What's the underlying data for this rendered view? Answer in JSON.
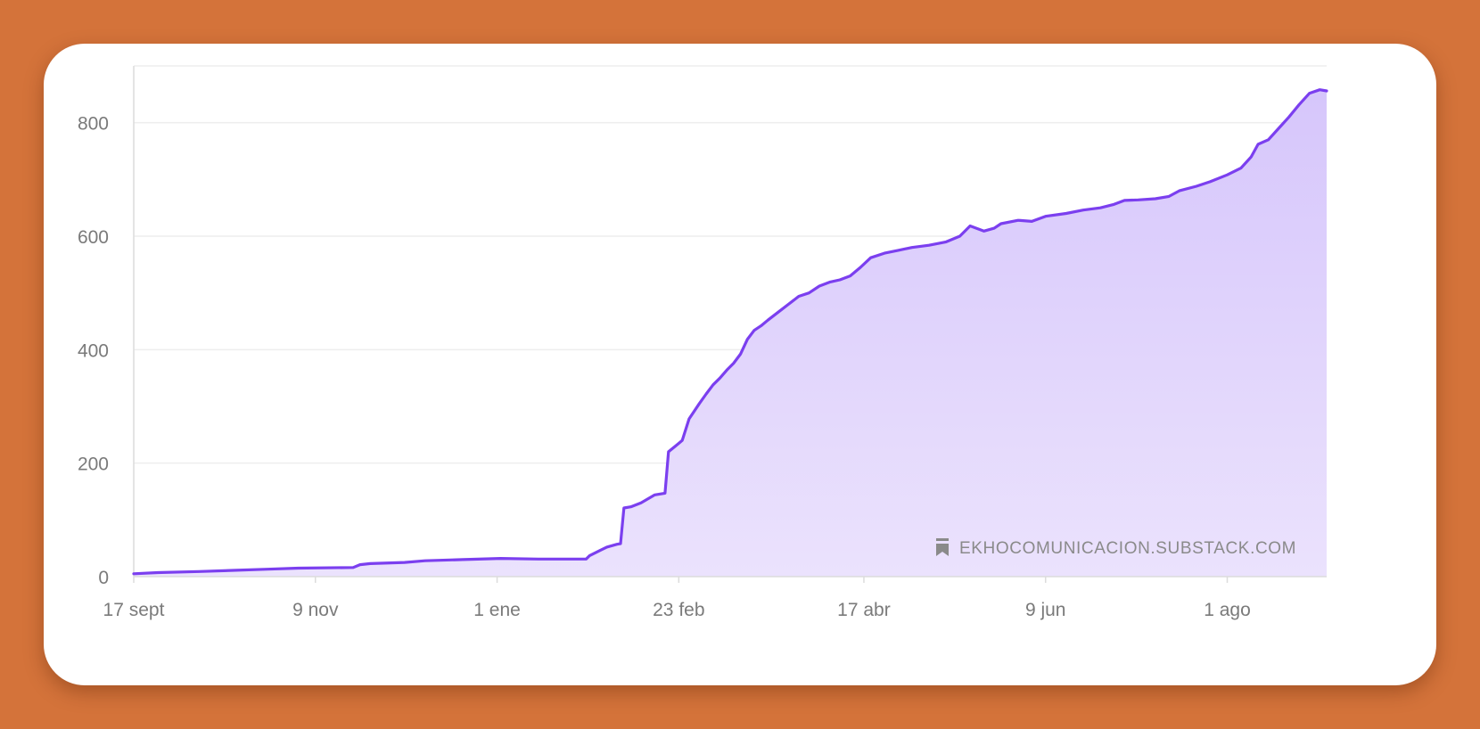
{
  "colors": {
    "background": "#d4733a",
    "card": "#ffffff",
    "line": "#7b3fef",
    "area_top": "#d6c6fb",
    "area_bottom": "#ebe2fd",
    "grid": "#eeeeee",
    "axis": "#dcdcdc"
  },
  "watermark": {
    "icon": "bookmark-icon",
    "text": "EKHOCOMUNICACION.SUBSTACK.COM"
  },
  "chart_data": {
    "type": "area",
    "title": "",
    "xlabel": "",
    "ylabel": "",
    "x_range": [
      "2023-09-17",
      "2024-08-30"
    ],
    "ylim": [
      0,
      900
    ],
    "grid": true,
    "x_ticks": [
      {
        "label": "17 sept",
        "date": "2023-09-17"
      },
      {
        "label": "9 nov",
        "date": "2023-11-09"
      },
      {
        "label": "1 ene",
        "date": "2024-01-01"
      },
      {
        "label": "23 feb",
        "date": "2024-02-23"
      },
      {
        "label": "17 abr",
        "date": "2024-04-17"
      },
      {
        "label": "9 jun",
        "date": "2024-06-09"
      },
      {
        "label": "1 ago",
        "date": "2024-08-01"
      }
    ],
    "y_ticks": [
      {
        "label": "0",
        "value": 0
      },
      {
        "label": "200",
        "value": 200
      },
      {
        "label": "400",
        "value": 400
      },
      {
        "label": "600",
        "value": 600
      },
      {
        "label": "800",
        "value": 800
      }
    ],
    "series": [
      {
        "points": [
          [
            "2023-09-17",
            5
          ],
          [
            "2023-09-24",
            7
          ],
          [
            "2023-10-06",
            9
          ],
          [
            "2023-10-16",
            11
          ],
          [
            "2023-10-26",
            13
          ],
          [
            "2023-11-04",
            15
          ],
          [
            "2023-11-20",
            16
          ],
          [
            "2023-11-22",
            21
          ],
          [
            "2023-11-25",
            23
          ],
          [
            "2023-12-05",
            25
          ],
          [
            "2023-12-11",
            28
          ],
          [
            "2023-12-22",
            30
          ],
          [
            "2024-01-02",
            32
          ],
          [
            "2024-01-13",
            31
          ],
          [
            "2024-01-27",
            31
          ],
          [
            "2024-01-28",
            37
          ],
          [
            "2024-01-31",
            46
          ],
          [
            "2024-02-02",
            52
          ],
          [
            "2024-02-05",
            57
          ],
          [
            "2024-02-06",
            58
          ],
          [
            "2024-02-07",
            121
          ],
          [
            "2024-02-09",
            123
          ],
          [
            "2024-02-12",
            130
          ],
          [
            "2024-02-16",
            144
          ],
          [
            "2024-02-19",
            147
          ],
          [
            "2024-02-20",
            220
          ],
          [
            "2024-02-22",
            230
          ],
          [
            "2024-02-24",
            240
          ],
          [
            "2024-02-26",
            278
          ],
          [
            "2024-02-29",
            305
          ],
          [
            "2024-03-02",
            322
          ],
          [
            "2024-03-04",
            338
          ],
          [
            "2024-03-06",
            350
          ],
          [
            "2024-03-08",
            364
          ],
          [
            "2024-03-10",
            376
          ],
          [
            "2024-03-12",
            392
          ],
          [
            "2024-03-14",
            418
          ],
          [
            "2024-03-16",
            434
          ],
          [
            "2024-03-18",
            442
          ],
          [
            "2024-03-20",
            452
          ],
          [
            "2024-03-23",
            466
          ],
          [
            "2024-03-26",
            480
          ],
          [
            "2024-03-29",
            494
          ],
          [
            "2024-04-01",
            500
          ],
          [
            "2024-04-04",
            512
          ],
          [
            "2024-04-07",
            519
          ],
          [
            "2024-04-10",
            523
          ],
          [
            "2024-04-13",
            530
          ],
          [
            "2024-04-16",
            545
          ],
          [
            "2024-04-19",
            562
          ],
          [
            "2024-04-23",
            570
          ],
          [
            "2024-04-27",
            575
          ],
          [
            "2024-05-01",
            580
          ],
          [
            "2024-05-06",
            584
          ],
          [
            "2024-05-11",
            590
          ],
          [
            "2024-05-15",
            600
          ],
          [
            "2024-05-18",
            618
          ],
          [
            "2024-05-22",
            609
          ],
          [
            "2024-05-25",
            614
          ],
          [
            "2024-05-27",
            622
          ],
          [
            "2024-06-01",
            628
          ],
          [
            "2024-06-05",
            626
          ],
          [
            "2024-06-09",
            635
          ],
          [
            "2024-06-15",
            640
          ],
          [
            "2024-06-20",
            646
          ],
          [
            "2024-06-25",
            650
          ],
          [
            "2024-06-29",
            656
          ],
          [
            "2024-07-02",
            663
          ],
          [
            "2024-07-06",
            664
          ],
          [
            "2024-07-11",
            666
          ],
          [
            "2024-07-15",
            670
          ],
          [
            "2024-07-18",
            680
          ],
          [
            "2024-07-23",
            688
          ],
          [
            "2024-07-27",
            696
          ],
          [
            "2024-08-01",
            708
          ],
          [
            "2024-08-05",
            720
          ],
          [
            "2024-08-08",
            740
          ],
          [
            "2024-08-10",
            762
          ],
          [
            "2024-08-13",
            770
          ],
          [
            "2024-08-16",
            790
          ],
          [
            "2024-08-19",
            810
          ],
          [
            "2024-08-22",
            832
          ],
          [
            "2024-08-25",
            852
          ],
          [
            "2024-08-28",
            858
          ],
          [
            "2024-08-30",
            856
          ]
        ]
      }
    ]
  }
}
